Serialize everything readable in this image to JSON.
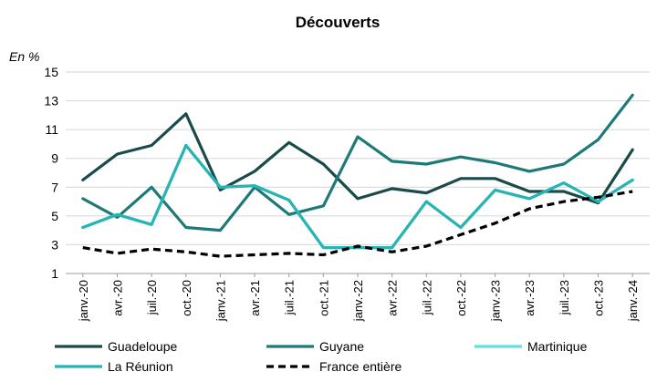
{
  "chart_data": {
    "type": "line",
    "title": "Découverts",
    "unit_label": "En %",
    "xlabel": "",
    "ylabel": "",
    "ylim": [
      1,
      15
    ],
    "yticks": [
      1,
      3,
      5,
      7,
      9,
      11,
      13,
      15
    ],
    "grid": "horizontal",
    "legend_position": "bottom",
    "categories": [
      "janv.-20",
      "avr.-20",
      "juil.-20",
      "oct.-20",
      "janv.-21",
      "avr.-21",
      "juil.-21",
      "oct.-21",
      "janv.-22",
      "avr.-22",
      "juil.-22",
      "oct.-22",
      "janv.-23",
      "avr.-23",
      "juil.-23",
      "oct.-23",
      "janv.-24"
    ],
    "series": [
      {
        "name": "Guadeloupe",
        "color": "#1a4a4a",
        "dash": "solid",
        "values": [
          7.5,
          9.3,
          9.9,
          12.1,
          6.8,
          8.1,
          10.1,
          8.6,
          6.2,
          6.9,
          6.6,
          7.6,
          7.6,
          6.7,
          6.7,
          5.9,
          9.6
        ]
      },
      {
        "name": "Guyane",
        "color": "#1e7a78",
        "dash": "solid",
        "values": [
          6.2,
          4.9,
          7.0,
          4.2,
          4.0,
          7.0,
          5.1,
          5.7,
          10.5,
          8.8,
          8.6,
          9.1,
          8.7,
          8.1,
          8.6,
          10.3,
          13.4
        ]
      },
      {
        "name": "Martinique",
        "color": "#5fe0df",
        "dash": "solid",
        "values": [
          4.2,
          5.1,
          4.4,
          9.9,
          7.0,
          7.1,
          6.1,
          2.8,
          2.8,
          2.8,
          6.0,
          4.2,
          6.8,
          6.2,
          7.3,
          6.0,
          7.5
        ]
      },
      {
        "name": "La Réunion",
        "color": "#2ab3b3",
        "dash": "solid",
        "values": [
          4.2,
          5.1,
          4.4,
          9.9,
          7.0,
          7.1,
          6.1,
          2.8,
          2.8,
          2.8,
          6.0,
          4.2,
          6.8,
          6.2,
          7.3,
          6.0,
          7.5
        ]
      },
      {
        "name": "France entière",
        "color": "#000000",
        "dash": "dashed",
        "values": [
          2.8,
          2.4,
          2.7,
          2.5,
          2.2,
          2.3,
          2.4,
          2.3,
          2.9,
          2.5,
          2.9,
          3.7,
          4.5,
          5.5,
          6.0,
          6.3,
          6.7
        ]
      }
    ]
  }
}
